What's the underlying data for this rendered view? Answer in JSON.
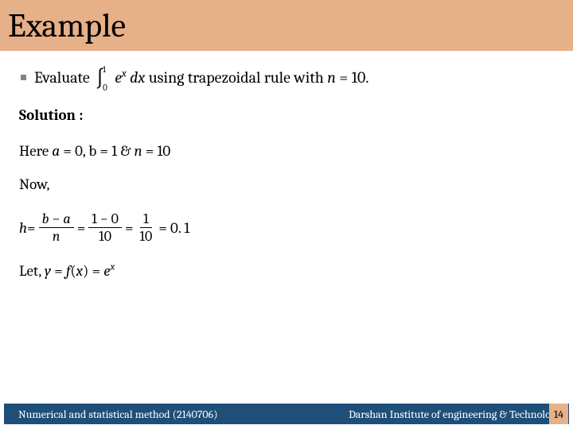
{
  "header": {
    "title": "Example",
    "bg_color": "#e6b088",
    "title_fontsize": 42
  },
  "problem": {
    "prefix": "Evaluate ",
    "int_lower": "0",
    "int_upper": "1",
    "integrand_base": "e",
    "integrand_exp": "x",
    "dx": " dx",
    "suffix": "   using trapezoidal rule with ",
    "n_var": "n",
    "n_eq": " = ",
    "n_val": "10.",
    "bullet_color": "#7a848e"
  },
  "solution_label": "Solution :",
  "here": {
    "prefix": "Here ",
    "a_var": "a",
    "a_eq_val": " = 0, ",
    "b_var": "b",
    "b_eq_val": " = 1 & ",
    "n_var": "n",
    "n_eq_val": " = 10"
  },
  "now": "Now,",
  "h_eq": {
    "h_var": "h",
    "eq1": " = ",
    "frac1_num_left": "b",
    "frac1_num_mid": " − ",
    "frac1_num_right": "a",
    "frac1_den": "n",
    "eq2": " = ",
    "frac2_num": "1 − 0",
    "frac2_den": "10",
    "eq3": " = ",
    "frac3_num": "1",
    "frac3_den": "10",
    "eq4": " = 0. 1"
  },
  "let": {
    "prefix": "Let, ",
    "y_var": "y",
    "eq1": " = ",
    "f_var": "f",
    "paren_open": "(",
    "x_var": "x",
    "paren_close": ")",
    "eq2": " = ",
    "e_base": "e",
    "e_exp": "x"
  },
  "footer": {
    "left": "Numerical and statistical method  (2140706)",
    "right": "Darshan Institute of engineering & Technology",
    "page_num": "14",
    "bg_color": "#1f4e79",
    "pagenum_bg": "#e6b088"
  }
}
